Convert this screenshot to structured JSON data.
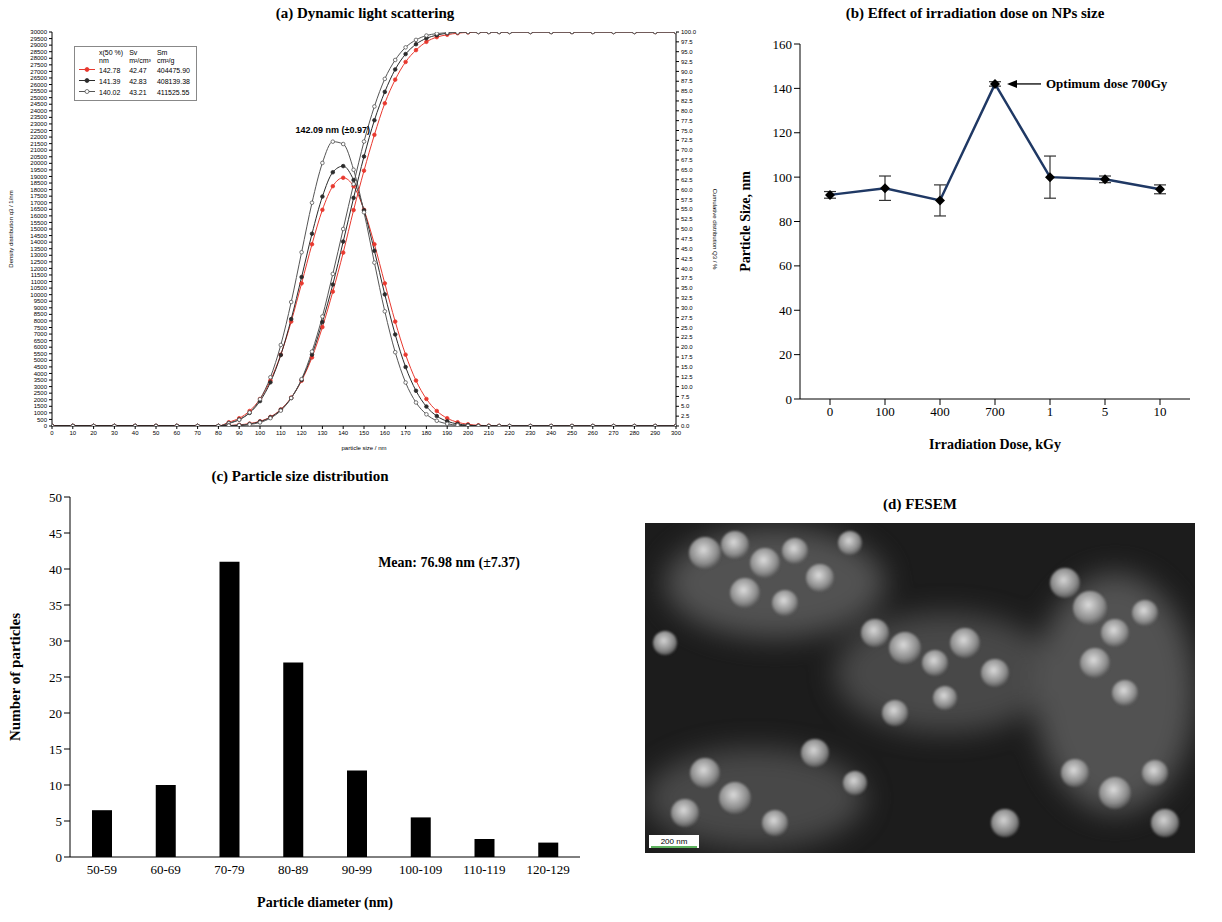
{
  "chart_data": [
    {
      "type": "line",
      "title": "(a) Dynamic light scattering",
      "x_label": "particle size / nm",
      "y_label": "Density distribution q3 / 1/nm",
      "y2_label": "Cumulative distribution Q3 / %",
      "x": [
        0,
        10,
        20,
        30,
        40,
        50,
        60,
        70,
        80,
        85,
        90,
        95,
        100,
        105,
        110,
        115,
        120,
        125,
        130,
        135,
        140,
        145,
        150,
        155,
        160,
        165,
        170,
        175,
        180,
        185,
        190,
        195,
        200,
        205,
        210,
        215,
        220,
        230,
        240,
        250,
        260,
        270,
        280,
        290,
        300
      ],
      "xlim": [
        0,
        300
      ],
      "xticks": [
        0,
        10,
        20,
        30,
        40,
        50,
        60,
        70,
        80,
        90,
        100,
        110,
        120,
        130,
        140,
        150,
        160,
        170,
        180,
        190,
        200,
        210,
        220,
        230,
        240,
        250,
        260,
        270,
        280,
        290,
        300
      ],
      "ylim": [
        0,
        30000
      ],
      "yticks": [
        0,
        500,
        1000,
        1500,
        2000,
        2500,
        3000,
        3500,
        4000,
        4500,
        5000,
        5500,
        6000,
        6500,
        7000,
        7500,
        8000,
        8500,
        9000,
        9500,
        10000,
        10500,
        11000,
        11500,
        12000,
        12500,
        13000,
        13500,
        14000,
        14500,
        15000,
        15500,
        16000,
        16500,
        17000,
        17500,
        18000,
        18500,
        19000,
        19500,
        20000,
        20500,
        21000,
        21500,
        22000,
        22500,
        23000,
        23500,
        24000,
        24500,
        25000,
        25500,
        26000,
        26500,
        27000,
        27500,
        28000,
        28500,
        29000,
        29500,
        30000
      ],
      "y2lim": [
        0,
        100
      ],
      "y2ticks": [
        {
          "value": 0,
          "label": "0.0"
        },
        2.5,
        {
          "value": 5,
          "label": "5.0"
        },
        7.5,
        {
          "value": 10,
          "label": "10.0"
        },
        12.5,
        {
          "value": 15,
          "label": "15.0"
        },
        17.5,
        {
          "value": 20,
          "label": "20.0"
        },
        22.5,
        {
          "value": 25,
          "label": "25.0"
        },
        27.5,
        {
          "value": 30,
          "label": "30.0"
        },
        32.5,
        {
          "value": 35,
          "label": "35.0"
        },
        37.5,
        {
          "value": 40,
          "label": "40.0"
        },
        42.5,
        {
          "value": 45,
          "label": "45.0"
        },
        47.5,
        {
          "value": 50,
          "label": "50.0"
        },
        52.5,
        {
          "value": 55,
          "label": "55.0"
        },
        57.5,
        {
          "value": 60,
          "label": "60.0"
        },
        62.5,
        {
          "value": 65,
          "label": "65.0"
        },
        67.5,
        {
          "value": 70,
          "label": "70.0"
        },
        72.5,
        {
          "value": 75,
          "label": "75.0"
        },
        77.5,
        {
          "value": 80,
          "label": "80.0"
        },
        82.5,
        {
          "value": 85,
          "label": "85.0"
        },
        87.5,
        {
          "value": 90,
          "label": "90.0"
        },
        92.5,
        {
          "value": 95,
          "label": "95.0"
        },
        97.5,
        {
          "value": 100,
          "label": "100.0"
        }
      ],
      "series": [
        {
          "color": "#e8382e",
          "marker": "circle",
          "values": [
            0,
            0,
            0,
            0,
            0,
            0,
            0,
            0,
            0,
            285,
            592,
            1144,
            2060,
            3460,
            5430,
            7950,
            10860,
            13840,
            16460,
            18260,
            18900,
            18260,
            16460,
            13840,
            10860,
            7950,
            5430,
            3460,
            2060,
            1144,
            592,
            285,
            129,
            55,
            20,
            8,
            0,
            0,
            0,
            0,
            0,
            0,
            0,
            0,
            0
          ]
        },
        {
          "color": "#2b2b2b",
          "marker": "circle",
          "values": [
            0,
            0,
            0,
            0,
            0,
            0,
            0,
            0,
            0,
            220,
            487,
            998,
            1895,
            3325,
            5405,
            8140,
            11340,
            14640,
            17470,
            19320,
            19790,
            18730,
            16430,
            13340,
            10020,
            6970,
            4490,
            2680,
            1480,
            756,
            357,
            157,
            64,
            20,
            0,
            0,
            0,
            0,
            0,
            0,
            0,
            0,
            0,
            0,
            0
          ]
        },
        {
          "color": "#555555",
          "marker": "open_circle",
          "values": [
            0,
            0,
            0,
            0,
            0,
            0,
            0,
            0,
            0,
            203,
            478,
            1030,
            2040,
            3710,
            6170,
            9440,
            13230,
            17000,
            20030,
            21650,
            21470,
            19510,
            16270,
            12440,
            8730,
            5620,
            3310,
            1790,
            890,
            400,
            170,
            65,
            20,
            0,
            0,
            0,
            0,
            0,
            0,
            0,
            0,
            0,
            0,
            0,
            0
          ]
        },
        {
          "color": "#e8382e",
          "marker": "circle",
          "axis": "y2",
          "values": [
            0,
            0,
            0,
            0,
            0,
            0,
            0,
            0,
            0,
            0.1,
            0.3,
            0.6,
            1.2,
            2.3,
            4.2,
            7.2,
            11.5,
            17.4,
            25.1,
            34.1,
            44.0,
            54.8,
            64.8,
            73.9,
            81.9,
            87.9,
            92.4,
            95.4,
            97.5,
            98.7,
            99.3,
            99.7,
            99.9,
            100,
            100,
            100,
            100,
            100,
            100,
            100,
            100,
            100,
            100,
            100,
            100
          ]
        },
        {
          "color": "#2b2b2b",
          "marker": "circle",
          "axis": "y2",
          "values": [
            0,
            0,
            0,
            0,
            0,
            0,
            0,
            0,
            0,
            0.1,
            0.2,
            0.5,
            1.1,
            2.2,
            4.1,
            7.1,
            11.7,
            18.1,
            26.4,
            35.9,
            46.8,
            57.9,
            68.4,
            77.6,
            84.8,
            90.5,
            94.4,
            96.9,
            98.4,
            99.2,
            99.7,
            99.9,
            100,
            100,
            100,
            100,
            100,
            100,
            100,
            100,
            100,
            100,
            100,
            100,
            100
          ]
        },
        {
          "color": "#555555",
          "marker": "open_circle",
          "axis": "y2",
          "values": [
            0,
            0,
            0,
            0,
            0,
            0,
            0,
            0,
            0,
            0.1,
            0.2,
            0.4,
            0.9,
            2.0,
            3.9,
            7.1,
            11.9,
            18.9,
            27.8,
            38.6,
            50,
            61.4,
            72.2,
            81.1,
            88.1,
            92.9,
            96.1,
            98.0,
            99.1,
            99.6,
            99.8,
            99.9,
            100,
            100,
            100,
            100,
            100,
            100,
            100,
            100,
            100,
            100,
            100,
            100,
            100
          ]
        }
      ],
      "legend": "upper left",
      "legend_table": {
        "columns": [
          {
            "label": "x(50 %)",
            "unit": "nm"
          },
          {
            "label": "Sv",
            "unit": "m²/cm³"
          },
          {
            "label": "Sm",
            "unit": "cm²/g"
          }
        ],
        "rows": [
          {
            "color": "#e8382e",
            "marker": "circle",
            "cells": [
              "142.78",
              "42.47",
              "404475.90"
            ]
          },
          {
            "color": "#2b2b2b",
            "marker": "circle",
            "cells": [
              "141.39",
              "42.83",
              "408139.38"
            ]
          },
          {
            "color": "#555555",
            "marker": "open_circle",
            "cells": [
              "140.02",
              "43.21",
              "411525.55"
            ]
          }
        ]
      },
      "annotations": [
        "142.09 nm (±0.97)"
      ]
    },
    {
      "type": "line",
      "title": "(b) Effect of irradiation dose on NPs size",
      "x_label": "Irradiation Dose, kGy",
      "y_label": "Particle Size, nm",
      "categories": [
        "0",
        "100",
        "400",
        "700",
        "1",
        "5",
        "10"
      ],
      "values": [
        92,
        95,
        89.5,
        142,
        100,
        99,
        94.5
      ],
      "errors": [
        1.5,
        5.5,
        7,
        1,
        9.5,
        1.5,
        2
      ],
      "color": "#1f3864",
      "marker": "diamond",
      "ylim": [
        0,
        160
      ],
      "yticks": [
        0,
        20,
        40,
        60,
        80,
        100,
        120,
        140,
        160
      ],
      "annotations": [
        {
          "text": "Optimum dose 700Gy",
          "at": "700"
        }
      ]
    },
    {
      "type": "bar",
      "title": "(c) Particle size distribution",
      "x_label": "Particle diameter (nm)",
      "y_label": "Number of particles",
      "categories": [
        "50-59",
        "60-69",
        "70-79",
        "80-89",
        "90-99",
        "100-109",
        "110-119",
        "120-129"
      ],
      "values": [
        6.5,
        10,
        41,
        27,
        12,
        5.5,
        2.5,
        2
      ],
      "color": "#000000",
      "ylim": [
        0,
        50
      ],
      "yticks": [
        0,
        5,
        10,
        15,
        20,
        25,
        30,
        35,
        40,
        45,
        50
      ],
      "annotations": [
        "Mean: 76.98 nm (±7.37)"
      ]
    }
  ],
  "image": {
    "title": "(d) FESEM",
    "scale_bar": "200 nm"
  }
}
